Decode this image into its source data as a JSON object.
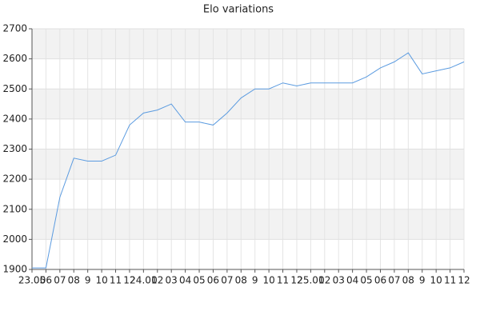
{
  "chart_data": {
    "type": "line",
    "title": "Elo variations",
    "categories": [
      "23.05",
      "06",
      "07",
      "08",
      "9",
      "10",
      "11",
      "12",
      "24.01",
      "02",
      "03",
      "04",
      "05",
      "06",
      "07",
      "08",
      "9",
      "10",
      "11",
      "12",
      "25.01",
      "02",
      "03",
      "04",
      "05",
      "06",
      "07",
      "08",
      "9",
      "10",
      "11",
      "12"
    ],
    "values": [
      1905,
      1905,
      2140,
      2270,
      2260,
      2260,
      2280,
      2380,
      2420,
      2430,
      2450,
      2390,
      2390,
      2380,
      2420,
      2470,
      2500,
      2500,
      2520,
      2510,
      2520,
      2520,
      2520,
      2520,
      2540,
      2570,
      2590,
      2620,
      2550,
      2560,
      2570,
      2590
    ],
    "color": "#5b9be0",
    "ylim": [
      1900,
      2700
    ],
    "yticks": [
      1900,
      2000,
      2100,
      2200,
      2300,
      2400,
      2500,
      2600,
      2700
    ],
    "grid": true
  }
}
